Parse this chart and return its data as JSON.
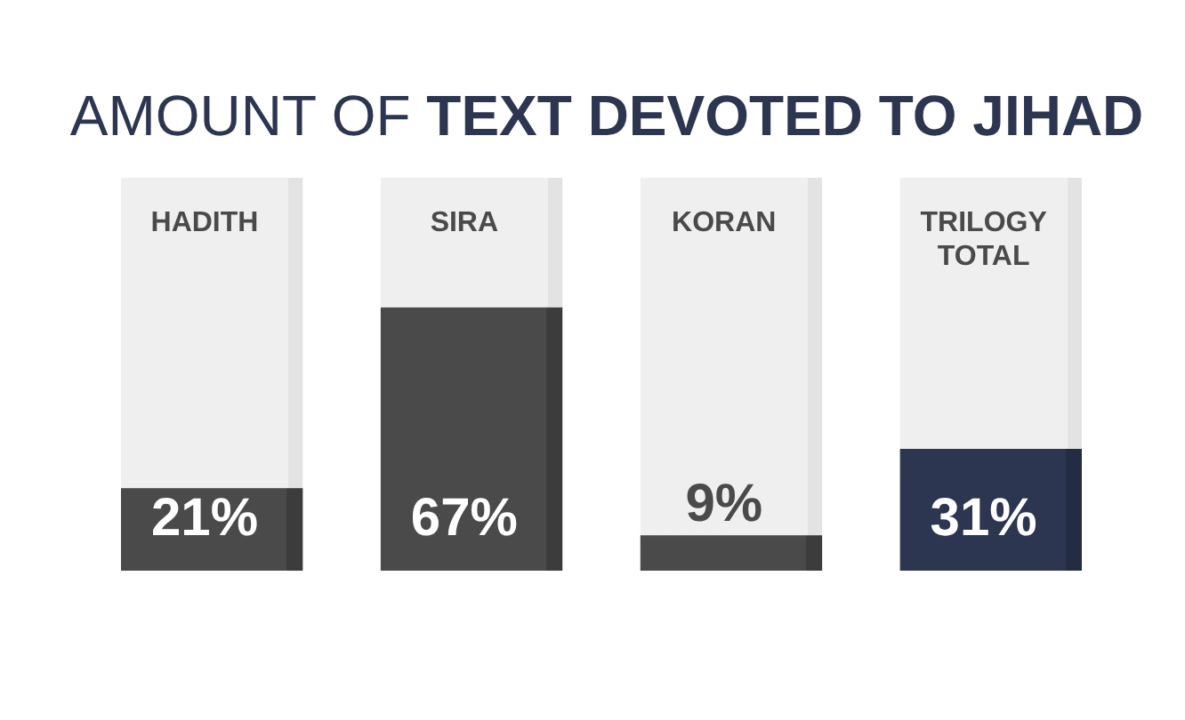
{
  "chart_data": {
    "type": "bar",
    "title": "AMOUNT OF TEXT DEVOTED TO JIHAD",
    "categories": [
      "HADITH",
      "SIRA",
      "KORAN",
      "TRILOGY TOTAL"
    ],
    "values": [
      21,
      67,
      9,
      31
    ],
    "colors": [
      "#4a4a4a",
      "#4a4a4a",
      "#4a4a4a",
      "#2c3651"
    ],
    "value_labels": [
      "21%",
      "67%",
      "9%",
      "31%"
    ],
    "ylim": [
      0,
      100
    ]
  }
}
